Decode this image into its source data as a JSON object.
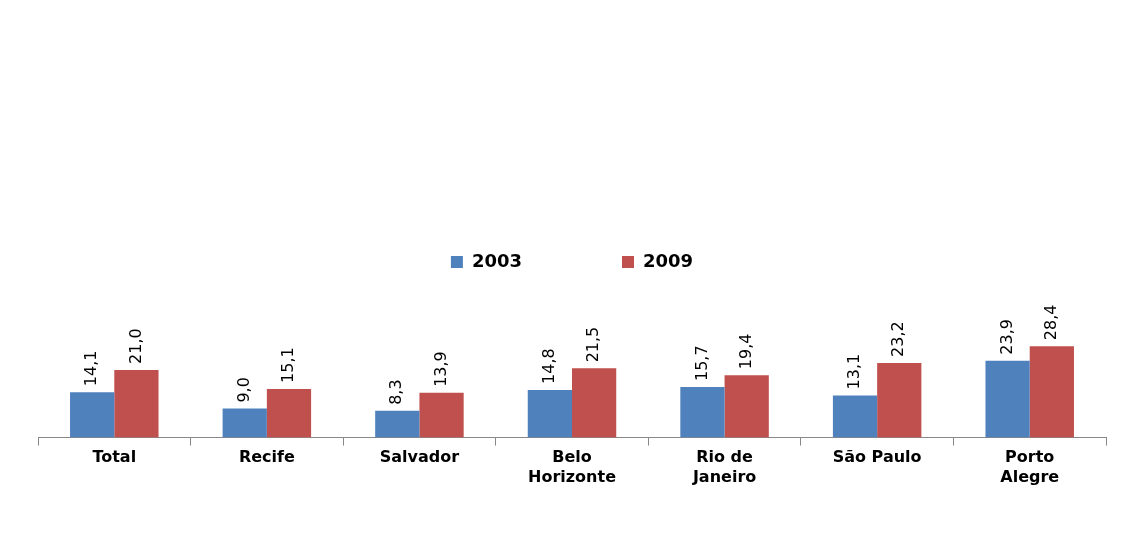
{
  "chart_data": {
    "type": "bar",
    "categories": [
      "Total",
      "Recife",
      "Salvador",
      "Belo Horizonte",
      "Rio de Janeiro",
      "São Paulo",
      "Porto Alegre"
    ],
    "series": [
      {
        "name": "2003",
        "color": "#4f81bd",
        "values": [
          14.1,
          9.0,
          8.3,
          14.8,
          15.7,
          13.1,
          23.9
        ],
        "value_labels": [
          "14,1",
          "9,0",
          "8,3",
          "14,8",
          "15,7",
          "13,1",
          "23,9"
        ]
      },
      {
        "name": "2009",
        "color": "#c0504d",
        "values": [
          21.0,
          15.1,
          13.9,
          21.5,
          19.4,
          23.2,
          28.4
        ],
        "value_labels": [
          "21,0",
          "15,1",
          "13,9",
          "21,5",
          "19,4",
          "23,2",
          "28,4"
        ]
      }
    ],
    "legend": "top"
  }
}
